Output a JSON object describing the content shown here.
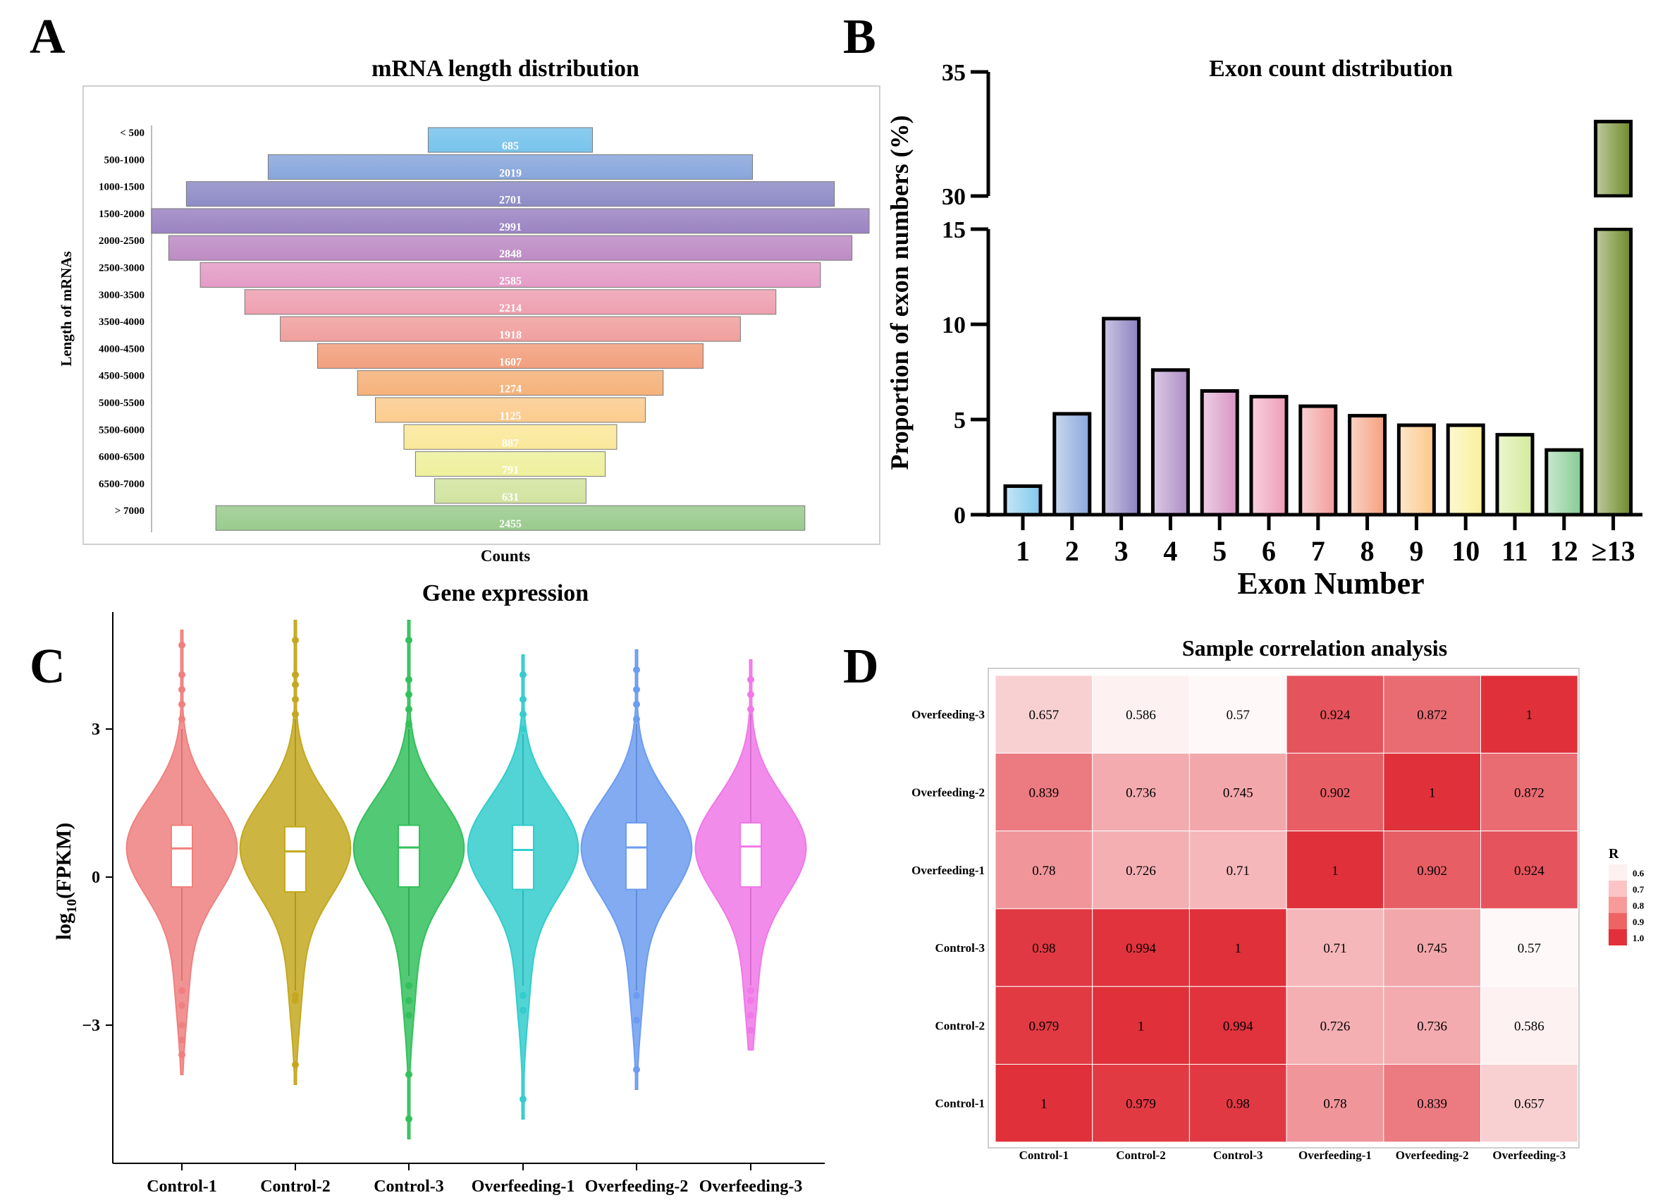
{
  "panel_letters": [
    "A",
    "B",
    "C",
    "D"
  ],
  "chart_data": [
    {
      "panel": "A",
      "type": "bar",
      "orientation": "horizontal-centered",
      "title": "mRNA length distribution",
      "xlabel": "Counts",
      "ylabel": "Length of mRNAs",
      "categories": [
        "< 500",
        "500-1000",
        "1000-1500",
        "1500-2000",
        "2000-2500",
        "2500-3000",
        "3000-3500",
        "3500-4000",
        "4000-4500",
        "4500-5000",
        "5000-5500",
        "5500-6000",
        "6000-6500",
        "6500-7000",
        "> 7000"
      ],
      "values": [
        685,
        2019,
        2701,
        2991,
        2848,
        2585,
        2214,
        1918,
        1607,
        1274,
        1125,
        887,
        791,
        631,
        2455
      ],
      "colors": [
        "#78c3ec",
        "#88a6dc",
        "#8e8cc6",
        "#9b84c2",
        "#bd8cc4",
        "#e49cc6",
        "#eea0b0",
        "#f0a09e",
        "#f2a07e",
        "#f6b27a",
        "#fbcc8e",
        "#fae89a",
        "#eff09e",
        "#d2e4a0",
        "#9acb8e"
      ]
    },
    {
      "panel": "B",
      "type": "bar",
      "title": "Exon count distribution",
      "xlabel": "Exon Number",
      "ylabel": "Proportion of exon numbers (%)",
      "categories": [
        "1",
        "2",
        "3",
        "4",
        "5",
        "6",
        "7",
        "8",
        "9",
        "10",
        "11",
        "12",
        "≥13"
      ],
      "values": [
        1.5,
        5.3,
        10.3,
        7.6,
        6.5,
        6.2,
        5.7,
        5.2,
        4.7,
        4.7,
        4.2,
        3.4,
        33
      ],
      "y_ticks_lower": [
        0,
        5,
        10,
        15
      ],
      "y_ticks_upper": [
        30,
        35
      ],
      "ylim_lower": [
        0,
        15
      ],
      "ylim_upper": [
        30,
        35
      ],
      "colors": [
        "#80c8ee",
        "#8aa8dc",
        "#8c82c0",
        "#ae8cc6",
        "#d894c4",
        "#ee9cb8",
        "#f29c9a",
        "#f4a07e",
        "#fbc88a",
        "#faf09a",
        "#d4ea98",
        "#86cc94",
        "#6f8a2a"
      ]
    },
    {
      "panel": "C",
      "type": "violin",
      "title": "Gene expression",
      "ylabel_main": "log",
      "ylabel_sub": "10",
      "ylabel_rest": "(FPKM)",
      "categories": [
        "Control-1",
        "Control-2",
        "Control-3",
        "Overfeeding-1",
        "Overfeeding-2",
        "Overfeeding-3"
      ],
      "y_ticks": [
        -3,
        0,
        3
      ],
      "ylim": [
        -5.5,
        5.6
      ],
      "colors": [
        "#f08080",
        "#c4a820",
        "#34c05c",
        "#34cccc",
        "#6c9cf0",
        "#f078e8"
      ],
      "whisker_low": [
        -2.1,
        -2.3,
        -2.0,
        -2.2,
        -2.3,
        -2.2
      ],
      "whisker_high": [
        3.0,
        3.2,
        3.0,
        2.9,
        3.1,
        3.3
      ],
      "q1": [
        -0.2,
        -0.3,
        -0.2,
        -0.25,
        -0.25,
        -0.2
      ],
      "median": [
        0.58,
        0.52,
        0.6,
        0.55,
        0.6,
        0.62
      ],
      "q3": [
        1.05,
        1.02,
        1.05,
        1.05,
        1.1,
        1.1
      ],
      "min": [
        -4.0,
        -4.2,
        -5.3,
        -4.9,
        -4.3,
        -3.5
      ],
      "max": [
        5.0,
        5.2,
        5.2,
        4.5,
        4.6,
        4.4
      ],
      "outliers_low": [
        [
          -2.3,
          -2.6,
          -3.0,
          -3.3,
          -3.6
        ],
        [
          -2.4,
          -2.5,
          -3.8
        ],
        [
          -2.2,
          -2.5,
          -2.8,
          -4.0,
          -4.9
        ],
        [
          -2.4,
          -2.7,
          -4.5
        ],
        [
          -2.4,
          -2.9,
          -3.9
        ],
        [
          -2.3,
          -2.5,
          -2.8,
          -3.1
        ]
      ],
      "outliers_high": [
        [
          3.2,
          3.5,
          3.8,
          4.1,
          4.7
        ],
        [
          3.3,
          3.6,
          3.9,
          4.1,
          4.8
        ],
        [
          3.1,
          3.4,
          3.7,
          4.0,
          4.8
        ],
        [
          3.0,
          3.3,
          3.6,
          4.1
        ],
        [
          3.2,
          3.5,
          3.8,
          4.2
        ],
        [
          3.4,
          3.7,
          4.0
        ]
      ]
    },
    {
      "panel": "D",
      "type": "heatmap",
      "title": "Sample correlation analysis",
      "rows": [
        "Overfeeding-3",
        "Overfeeding-2",
        "Overfeeding-1",
        "Control-3",
        "Control-2",
        "Control-1"
      ],
      "cols": [
        "Control-1",
        "Control-2",
        "Control-3",
        "Overfeeding-1",
        "Overfeeding-2",
        "Overfeeding-3"
      ],
      "values": [
        [
          "0.657",
          "0.586",
          "0.57",
          "0.924",
          "0.872",
          "1"
        ],
        [
          "0.839",
          "0.736",
          "0.745",
          "0.902",
          "1",
          "0.872"
        ],
        [
          "0.78",
          "0.726",
          "0.71",
          "1",
          "0.902",
          "0.924"
        ],
        [
          "0.98",
          "0.994",
          "1",
          "0.71",
          "0.745",
          "0.57"
        ],
        [
          "0.979",
          "1",
          "0.994",
          "0.726",
          "0.736",
          "0.586"
        ],
        [
          "1",
          "0.979",
          "0.98",
          "0.78",
          "0.839",
          "0.657"
        ]
      ],
      "legend_title": "R",
      "legend_ticks": [
        "0.6",
        "0.7",
        "0.8",
        "0.9",
        "1.0"
      ],
      "legend_colors": [
        "#fdf1f1",
        "#fcc4c4",
        "#f89a9a",
        "#ee6464",
        "#e2303a"
      ],
      "color_low": "#fff8f8",
      "color_high": "#e0303a"
    }
  ]
}
